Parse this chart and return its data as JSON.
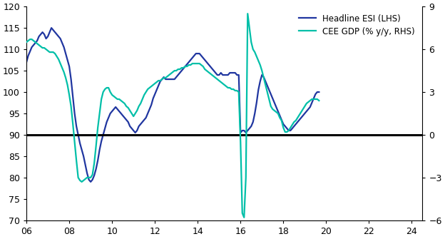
{
  "esi_color": "#2036a0",
  "gdp_color": "#00bfa8",
  "hline_color": "black",
  "ylim_left": [
    70,
    120
  ],
  "ylim_right": [
    -6,
    9
  ],
  "yticks_left": [
    70,
    75,
    80,
    85,
    90,
    95,
    100,
    105,
    110,
    115,
    120
  ],
  "yticks_right": [
    -6,
    -3,
    0,
    3,
    6,
    9
  ],
  "xtick_positions": [
    2006,
    2008,
    2010,
    2012,
    2014,
    2016,
    2018,
    2020,
    2022,
    2024
  ],
  "xtick_labels": [
    "06",
    "08",
    "10",
    "12",
    "14",
    "16",
    "18",
    "20",
    "22",
    "24"
  ],
  "xlim": [
    2006,
    2024.5
  ],
  "legend_labels": [
    "Headline ESI (LHS)",
    "CEE GDP (% y/y, RHS)"
  ],
  "background_color": "#ffffff",
  "esi_lw": 1.6,
  "gdp_lw": 1.6,
  "esi_data": [
    107.0,
    108.5,
    109.5,
    110.5,
    111.0,
    111.5,
    112.0,
    113.0,
    113.5,
    114.0,
    113.5,
    112.5,
    113.0,
    114.0,
    115.0,
    114.5,
    114.0,
    113.5,
    113.0,
    112.5,
    111.5,
    110.5,
    109.0,
    107.5,
    106.0,
    103.0,
    99.0,
    95.0,
    92.0,
    90.0,
    88.0,
    86.5,
    85.0,
    83.0,
    81.0,
    79.5,
    79.0,
    79.5,
    80.5,
    82.0,
    84.0,
    86.5,
    88.5,
    90.0,
    91.5,
    93.0,
    94.0,
    95.0,
    95.5,
    96.0,
    96.5,
    96.0,
    95.5,
    95.0,
    94.5,
    94.0,
    93.5,
    93.0,
    92.0,
    91.5,
    91.0,
    90.5,
    91.0,
    92.0,
    92.5,
    93.0,
    93.5,
    94.0,
    95.0,
    96.0,
    97.0,
    98.5,
    99.5,
    100.5,
    101.5,
    102.5,
    103.0,
    103.5,
    103.0,
    103.0,
    103.0,
    103.0,
    103.0,
    103.0,
    103.5,
    104.0,
    104.5,
    105.0,
    105.5,
    106.0,
    106.5,
    107.0,
    107.5,
    108.0,
    108.5,
    109.0,
    109.0,
    109.0,
    108.5,
    108.0,
    107.5,
    107.0,
    106.5,
    106.0,
    105.5,
    105.0,
    104.5,
    104.0,
    104.0,
    104.5,
    104.0,
    104.0,
    104.0,
    104.0,
    104.5,
    104.5,
    104.5,
    104.5,
    104.0,
    104.0,
    90.5,
    91.0,
    91.0,
    90.5,
    91.0,
    91.5,
    92.0,
    93.0,
    95.0,
    97.5,
    100.5,
    102.5,
    104.0,
    103.5,
    102.5,
    101.5,
    100.5,
    99.5,
    98.5,
    97.5,
    96.5,
    95.5,
    94.5,
    93.5,
    92.5,
    92.0,
    91.5,
    91.0,
    91.0,
    91.5,
    92.0,
    92.5,
    93.0,
    93.5,
    94.0,
    94.5,
    95.0,
    95.5,
    96.0,
    96.5,
    97.5,
    98.5,
    99.5,
    100.0,
    100.0
  ],
  "gdp_data_rhs": [
    6.5,
    6.6,
    6.7,
    6.7,
    6.6,
    6.5,
    6.4,
    6.3,
    6.2,
    6.1,
    6.1,
    6.0,
    5.9,
    5.8,
    5.8,
    5.8,
    5.7,
    5.5,
    5.3,
    5.0,
    4.7,
    4.4,
    4.0,
    3.5,
    2.8,
    2.0,
    0.8,
    -0.5,
    -1.8,
    -3.0,
    -3.2,
    -3.3,
    -3.2,
    -3.1,
    -3.0,
    -3.0,
    -3.0,
    -2.8,
    -2.0,
    -0.8,
    0.5,
    1.5,
    2.5,
    3.0,
    3.2,
    3.3,
    3.3,
    3.0,
    2.8,
    2.7,
    2.6,
    2.5,
    2.5,
    2.4,
    2.3,
    2.2,
    2.0,
    1.9,
    1.7,
    1.5,
    1.3,
    1.5,
    1.7,
    2.0,
    2.2,
    2.5,
    2.8,
    3.0,
    3.2,
    3.3,
    3.4,
    3.5,
    3.6,
    3.7,
    3.8,
    3.8,
    3.9,
    4.0,
    4.0,
    4.1,
    4.2,
    4.3,
    4.4,
    4.5,
    4.5,
    4.6,
    4.6,
    4.7,
    4.7,
    4.8,
    4.8,
    4.9,
    4.9,
    5.0,
    5.0,
    5.0,
    5.0,
    5.0,
    4.9,
    4.8,
    4.6,
    4.5,
    4.4,
    4.3,
    4.2,
    4.1,
    4.0,
    3.9,
    3.8,
    3.7,
    3.6,
    3.5,
    3.4,
    3.3,
    3.3,
    3.2,
    3.2,
    3.1,
    3.1,
    3.0,
    -0.5,
    -5.5,
    -5.8,
    -3.0,
    8.5,
    7.5,
    6.5,
    6.0,
    5.8,
    5.5,
    5.2,
    4.9,
    4.5,
    4.0,
    3.5,
    3.0,
    2.5,
    2.0,
    1.8,
    1.7,
    1.6,
    1.5,
    1.2,
    1.0,
    0.5,
    0.2,
    0.2,
    0.3,
    0.5,
    0.7,
    0.9,
    1.0,
    1.2,
    1.4,
    1.6,
    1.8,
    2.0,
    2.2,
    2.3,
    2.4,
    2.5,
    2.5,
    2.5,
    2.5,
    2.4
  ]
}
